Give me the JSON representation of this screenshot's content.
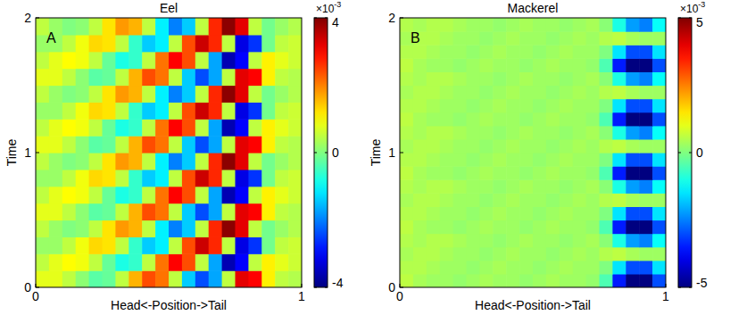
{
  "chart_data": [
    {
      "type": "heatmap",
      "title": "Eel",
      "panel_label": "A",
      "x_label": "Head<-Position->Tail",
      "y_label": "Time",
      "xlim": [
        0,
        1
      ],
      "ylim": [
        0,
        2
      ],
      "xticks": [
        0,
        1
      ],
      "yticks": [
        0,
        1,
        2
      ],
      "x": [
        0.025,
        0.075,
        0.125,
        0.175,
        0.225,
        0.275,
        0.325,
        0.375,
        0.425,
        0.475,
        0.525,
        0.575,
        0.625,
        0.675,
        0.725,
        0.775,
        0.825,
        0.875,
        0.925,
        0.975
      ],
      "y": [
        0.0625,
        0.1875,
        0.3125,
        0.4375,
        0.5625,
        0.6875,
        0.8125,
        0.9375,
        1.0625,
        1.1875,
        1.3125,
        1.4375,
        1.5625,
        1.6875,
        1.8125,
        1.9375
      ],
      "cells": [
        [
          0.8,
          0.8,
          0.5,
          0.1,
          -0.3,
          -0.2,
          0.5,
          1.6,
          2.4,
          2.1,
          0.5,
          -1.4,
          -2.4,
          -1.7,
          0.5,
          3.2,
          3.0,
          1.1,
          0.5,
          0.4
        ],
        [
          0.5,
          0.8,
          1.0,
          0.9,
          0.5,
          -0.2,
          -0.8,
          -0.6,
          0.5,
          2.1,
          3.0,
          2.4,
          0.5,
          -1.7,
          -3.6,
          -3.0,
          0.5,
          1.1,
          0.8,
          0.6
        ],
        [
          0.2,
          0.2,
          0.5,
          0.9,
          1.3,
          1.2,
          0.5,
          -0.6,
          -1.4,
          -1.1,
          0.5,
          2.4,
          3.4,
          2.7,
          0.5,
          -3.2,
          -2.6,
          -0.1,
          0.5,
          0.6
        ],
        [
          0.5,
          0.2,
          0.0,
          0.1,
          0.5,
          1.2,
          1.8,
          1.6,
          0.5,
          -1.1,
          -2.0,
          -1.4,
          0.5,
          2.7,
          3.9,
          3.2,
          0.5,
          -0.1,
          0.2,
          0.4
        ],
        [
          0.8,
          0.8,
          0.5,
          0.1,
          -0.3,
          -0.2,
          0.5,
          1.6,
          2.4,
          2.1,
          0.5,
          -1.4,
          -2.4,
          -1.7,
          0.5,
          3.2,
          3.0,
          1.1,
          0.5,
          0.4
        ],
        [
          0.5,
          0.8,
          1.0,
          0.9,
          0.5,
          -0.2,
          -0.8,
          -0.6,
          0.5,
          2.1,
          3.0,
          2.4,
          0.5,
          -1.7,
          -3.6,
          -3.0,
          0.5,
          1.1,
          0.8,
          0.6
        ],
        [
          0.2,
          0.2,
          0.5,
          0.9,
          1.3,
          1.2,
          0.5,
          -0.6,
          -1.4,
          -1.1,
          0.5,
          2.4,
          3.4,
          2.7,
          0.5,
          -3.2,
          -2.6,
          -0.1,
          0.5,
          0.6
        ],
        [
          0.5,
          0.2,
          0.0,
          0.1,
          0.5,
          1.2,
          1.8,
          1.6,
          0.5,
          -1.1,
          -2.0,
          -1.4,
          0.5,
          2.7,
          3.9,
          3.2,
          0.5,
          -0.1,
          0.2,
          0.4
        ],
        [
          0.8,
          0.8,
          0.5,
          0.1,
          -0.3,
          -0.2,
          0.5,
          1.6,
          2.4,
          2.1,
          0.5,
          -1.4,
          -2.4,
          -1.7,
          0.5,
          3.2,
          3.0,
          1.1,
          0.5,
          0.4
        ],
        [
          0.5,
          0.8,
          1.0,
          0.9,
          0.5,
          -0.2,
          -0.8,
          -0.6,
          0.5,
          2.1,
          3.0,
          2.4,
          0.5,
          -1.7,
          -3.6,
          -3.0,
          0.5,
          1.1,
          0.8,
          0.6
        ],
        [
          0.2,
          0.2,
          0.5,
          0.9,
          1.3,
          1.2,
          0.5,
          -0.6,
          -1.4,
          -1.1,
          0.5,
          2.4,
          3.4,
          2.7,
          0.5,
          -3.2,
          -2.6,
          -0.1,
          0.5,
          0.6
        ],
        [
          0.5,
          0.2,
          0.0,
          0.1,
          0.5,
          1.2,
          1.8,
          1.6,
          0.5,
          -1.1,
          -2.0,
          -1.4,
          0.5,
          2.7,
          3.9,
          3.2,
          0.5,
          -0.1,
          0.2,
          0.4
        ],
        [
          0.8,
          0.8,
          0.5,
          0.1,
          -0.3,
          -0.2,
          0.5,
          1.6,
          2.4,
          2.1,
          0.5,
          -1.4,
          -2.4,
          -1.7,
          0.5,
          3.2,
          3.0,
          1.1,
          0.5,
          0.4
        ],
        [
          0.5,
          0.8,
          1.0,
          0.9,
          0.5,
          -0.2,
          -0.8,
          -0.6,
          0.5,
          2.1,
          3.0,
          2.4,
          0.5,
          -1.7,
          -3.6,
          -3.0,
          0.5,
          1.1,
          0.8,
          0.6
        ],
        [
          0.2,
          0.2,
          0.5,
          0.9,
          1.3,
          1.2,
          0.5,
          -0.6,
          -1.4,
          -1.1,
          0.5,
          2.4,
          3.4,
          2.7,
          0.5,
          -3.2,
          -2.6,
          -0.1,
          0.5,
          0.6
        ],
        [
          0.5,
          0.2,
          0.0,
          0.1,
          0.5,
          1.2,
          1.8,
          1.6,
          0.5,
          -1.1,
          -2.0,
          -1.4,
          0.5,
          2.7,
          3.9,
          3.2,
          0.5,
          -0.1,
          0.2,
          0.4
        ]
      ],
      "colorbar": {
        "range": [
          -4,
          4
        ],
        "ticks": [
          -4,
          0,
          4
        ],
        "multiplier": "×10",
        "exponent": "-3"
      }
    },
    {
      "type": "heatmap",
      "title": "Mackerel",
      "panel_label": "B",
      "x_label": "Head<-Position->Tail",
      "y_label": "Time",
      "xlim": [
        0,
        1
      ],
      "ylim": [
        0,
        2
      ],
      "xticks": [
        0,
        1
      ],
      "yticks": [
        0,
        1,
        2
      ],
      "x": [
        0.025,
        0.075,
        0.125,
        0.175,
        0.225,
        0.275,
        0.325,
        0.375,
        0.425,
        0.475,
        0.525,
        0.575,
        0.625,
        0.675,
        0.725,
        0.775,
        0.825,
        0.875,
        0.925,
        0.975
      ],
      "y": [
        0.05,
        0.15,
        0.25,
        0.35,
        0.45,
        0.55,
        0.65,
        0.75,
        0.85,
        0.95,
        1.05,
        1.15,
        1.25,
        1.35,
        1.45,
        1.55,
        1.65,
        1.75,
        1.85,
        1.95
      ],
      "cells": [
        [
          0.6,
          0.4,
          0.3,
          0.3,
          0.2,
          0.3,
          0.4,
          0.3,
          0.3,
          0.2,
          0.3,
          0.4,
          0.3,
          0.3,
          0.2,
          -0.5,
          -3.5,
          -5.0,
          -5.0,
          -3.0
        ],
        [
          0.5,
          0.5,
          0.4,
          0.3,
          0.3,
          0.2,
          0.3,
          0.4,
          0.3,
          0.3,
          0.2,
          0.3,
          0.4,
          0.3,
          0.3,
          0.0,
          -1.5,
          -3.0,
          -3.0,
          -1.5
        ],
        [
          0.4,
          0.5,
          0.5,
          0.4,
          0.3,
          0.3,
          0.2,
          0.3,
          0.4,
          0.3,
          0.3,
          0.2,
          0.3,
          0.4,
          0.3,
          0.5,
          0.6,
          0.4,
          0.3,
          0.3
        ],
        [
          0.5,
          0.4,
          0.5,
          0.5,
          0.4,
          0.3,
          0.3,
          0.2,
          0.3,
          0.4,
          0.3,
          0.3,
          0.2,
          0.3,
          0.4,
          0.1,
          -1.0,
          -2.2,
          -2.5,
          -1.2
        ],
        [
          0.6,
          0.4,
          0.3,
          0.3,
          0.2,
          0.3,
          0.4,
          0.3,
          0.3,
          0.2,
          0.3,
          0.4,
          0.3,
          0.3,
          0.2,
          -0.5,
          -3.5,
          -5.0,
          -5.0,
          -3.0
        ],
        [
          0.5,
          0.5,
          0.4,
          0.3,
          0.3,
          0.2,
          0.3,
          0.4,
          0.3,
          0.3,
          0.2,
          0.3,
          0.4,
          0.3,
          0.3,
          0.0,
          -1.5,
          -3.0,
          -3.0,
          -1.5
        ],
        [
          0.4,
          0.5,
          0.5,
          0.4,
          0.3,
          0.3,
          0.2,
          0.3,
          0.4,
          0.3,
          0.3,
          0.2,
          0.3,
          0.4,
          0.3,
          0.5,
          0.6,
          0.4,
          0.3,
          0.3
        ],
        [
          0.5,
          0.4,
          0.5,
          0.5,
          0.4,
          0.3,
          0.3,
          0.2,
          0.3,
          0.4,
          0.3,
          0.3,
          0.2,
          0.3,
          0.4,
          0.1,
          -1.0,
          -2.2,
          -2.5,
          -1.2
        ],
        [
          0.6,
          0.4,
          0.3,
          0.3,
          0.2,
          0.3,
          0.4,
          0.3,
          0.3,
          0.2,
          0.3,
          0.4,
          0.3,
          0.3,
          0.2,
          -0.5,
          -3.5,
          -5.0,
          -5.0,
          -3.0
        ],
        [
          0.5,
          0.5,
          0.4,
          0.3,
          0.3,
          0.2,
          0.3,
          0.4,
          0.3,
          0.3,
          0.2,
          0.3,
          0.4,
          0.3,
          0.3,
          0.0,
          -1.5,
          -3.0,
          -3.0,
          -1.5
        ],
        [
          0.4,
          0.5,
          0.5,
          0.4,
          0.3,
          0.3,
          0.2,
          0.3,
          0.4,
          0.3,
          0.3,
          0.2,
          0.3,
          0.4,
          0.3,
          0.5,
          0.6,
          0.4,
          0.3,
          0.3
        ],
        [
          0.5,
          0.4,
          0.5,
          0.5,
          0.4,
          0.3,
          0.3,
          0.2,
          0.3,
          0.4,
          0.3,
          0.3,
          0.2,
          0.3,
          0.4,
          0.1,
          -1.0,
          -2.2,
          -2.5,
          -1.2
        ],
        [
          0.6,
          0.4,
          0.3,
          0.3,
          0.2,
          0.3,
          0.4,
          0.3,
          0.3,
          0.2,
          0.3,
          0.4,
          0.3,
          0.3,
          0.2,
          -0.5,
          -3.5,
          -5.0,
          -5.0,
          -3.0
        ],
        [
          0.5,
          0.5,
          0.4,
          0.3,
          0.3,
          0.2,
          0.3,
          0.4,
          0.3,
          0.3,
          0.2,
          0.3,
          0.4,
          0.3,
          0.3,
          0.0,
          -1.5,
          -3.0,
          -3.0,
          -1.5
        ],
        [
          0.4,
          0.5,
          0.5,
          0.4,
          0.3,
          0.3,
          0.2,
          0.3,
          0.4,
          0.3,
          0.3,
          0.2,
          0.3,
          0.4,
          0.3,
          0.5,
          0.6,
          0.4,
          0.3,
          0.3
        ],
        [
          0.5,
          0.4,
          0.5,
          0.5,
          0.4,
          0.3,
          0.3,
          0.2,
          0.3,
          0.4,
          0.3,
          0.3,
          0.2,
          0.3,
          0.4,
          0.1,
          -1.0,
          -2.2,
          -2.5,
          -1.2
        ],
        [
          0.6,
          0.4,
          0.3,
          0.3,
          0.2,
          0.3,
          0.4,
          0.3,
          0.3,
          0.2,
          0.3,
          0.4,
          0.3,
          0.3,
          0.2,
          -0.5,
          -3.5,
          -5.0,
          -5.0,
          -3.0
        ],
        [
          0.5,
          0.5,
          0.4,
          0.3,
          0.3,
          0.2,
          0.3,
          0.4,
          0.3,
          0.3,
          0.2,
          0.3,
          0.4,
          0.3,
          0.3,
          0.0,
          -1.5,
          -3.0,
          -3.0,
          -1.5
        ],
        [
          0.4,
          0.5,
          0.5,
          0.4,
          0.3,
          0.3,
          0.2,
          0.3,
          0.4,
          0.3,
          0.3,
          0.2,
          0.3,
          0.4,
          0.3,
          0.5,
          0.6,
          0.4,
          0.3,
          0.3
        ],
        [
          0.5,
          0.4,
          0.5,
          0.5,
          0.4,
          0.3,
          0.3,
          0.2,
          0.3,
          0.4,
          0.3,
          0.3,
          0.2,
          0.3,
          0.4,
          0.1,
          -1.0,
          -2.2,
          -2.5,
          -1.2
        ]
      ],
      "colorbar": {
        "range": [
          -5,
          5
        ],
        "ticks": [
          -5,
          0,
          5
        ],
        "multiplier": "×10",
        "exponent": "-3"
      }
    }
  ]
}
